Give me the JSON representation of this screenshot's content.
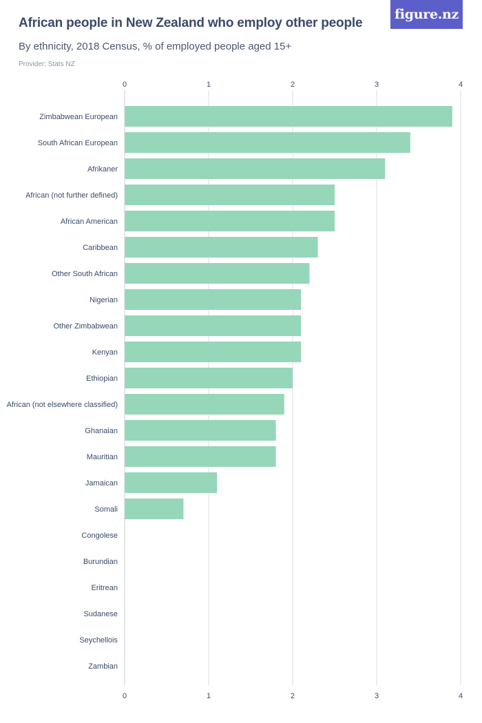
{
  "header": {
    "title": "African people in New Zealand who employ other people",
    "subtitle": "By ethnicity, 2018 Census, % of employed people aged 15+",
    "provider": "Provider: Stats NZ",
    "logo": "figure.nz"
  },
  "chart_data": {
    "type": "bar",
    "orientation": "horizontal",
    "title": "African people in New Zealand who employ other people",
    "subtitle": "By ethnicity, 2018 Census, % of employed people aged 15+",
    "xlim": [
      0,
      4
    ],
    "xticks": [
      0,
      1,
      2,
      3,
      4
    ],
    "grid": true,
    "bar_color": "#96d6b9",
    "categories": [
      "Zimbabwean European",
      "South African European",
      "Afrikaner",
      "African (not further defined)",
      "African American",
      "Caribbean",
      "Other South African",
      "Nigerian",
      "Other Zimbabwean",
      "Kenyan",
      "Ethiopian",
      "African (not elsewhere classified)",
      "Ghanaian",
      "Mauritian",
      "Jamaican",
      "Somali",
      "Congolese",
      "Burundian",
      "Eritrean",
      "Sudanese",
      "Seychellois",
      "Zambian"
    ],
    "values": [
      3.9,
      3.4,
      3.1,
      2.5,
      2.5,
      2.3,
      2.2,
      2.1,
      2.1,
      2.1,
      2.0,
      1.9,
      1.8,
      1.8,
      1.1,
      0.7,
      null,
      null,
      null,
      null,
      null,
      null
    ]
  }
}
